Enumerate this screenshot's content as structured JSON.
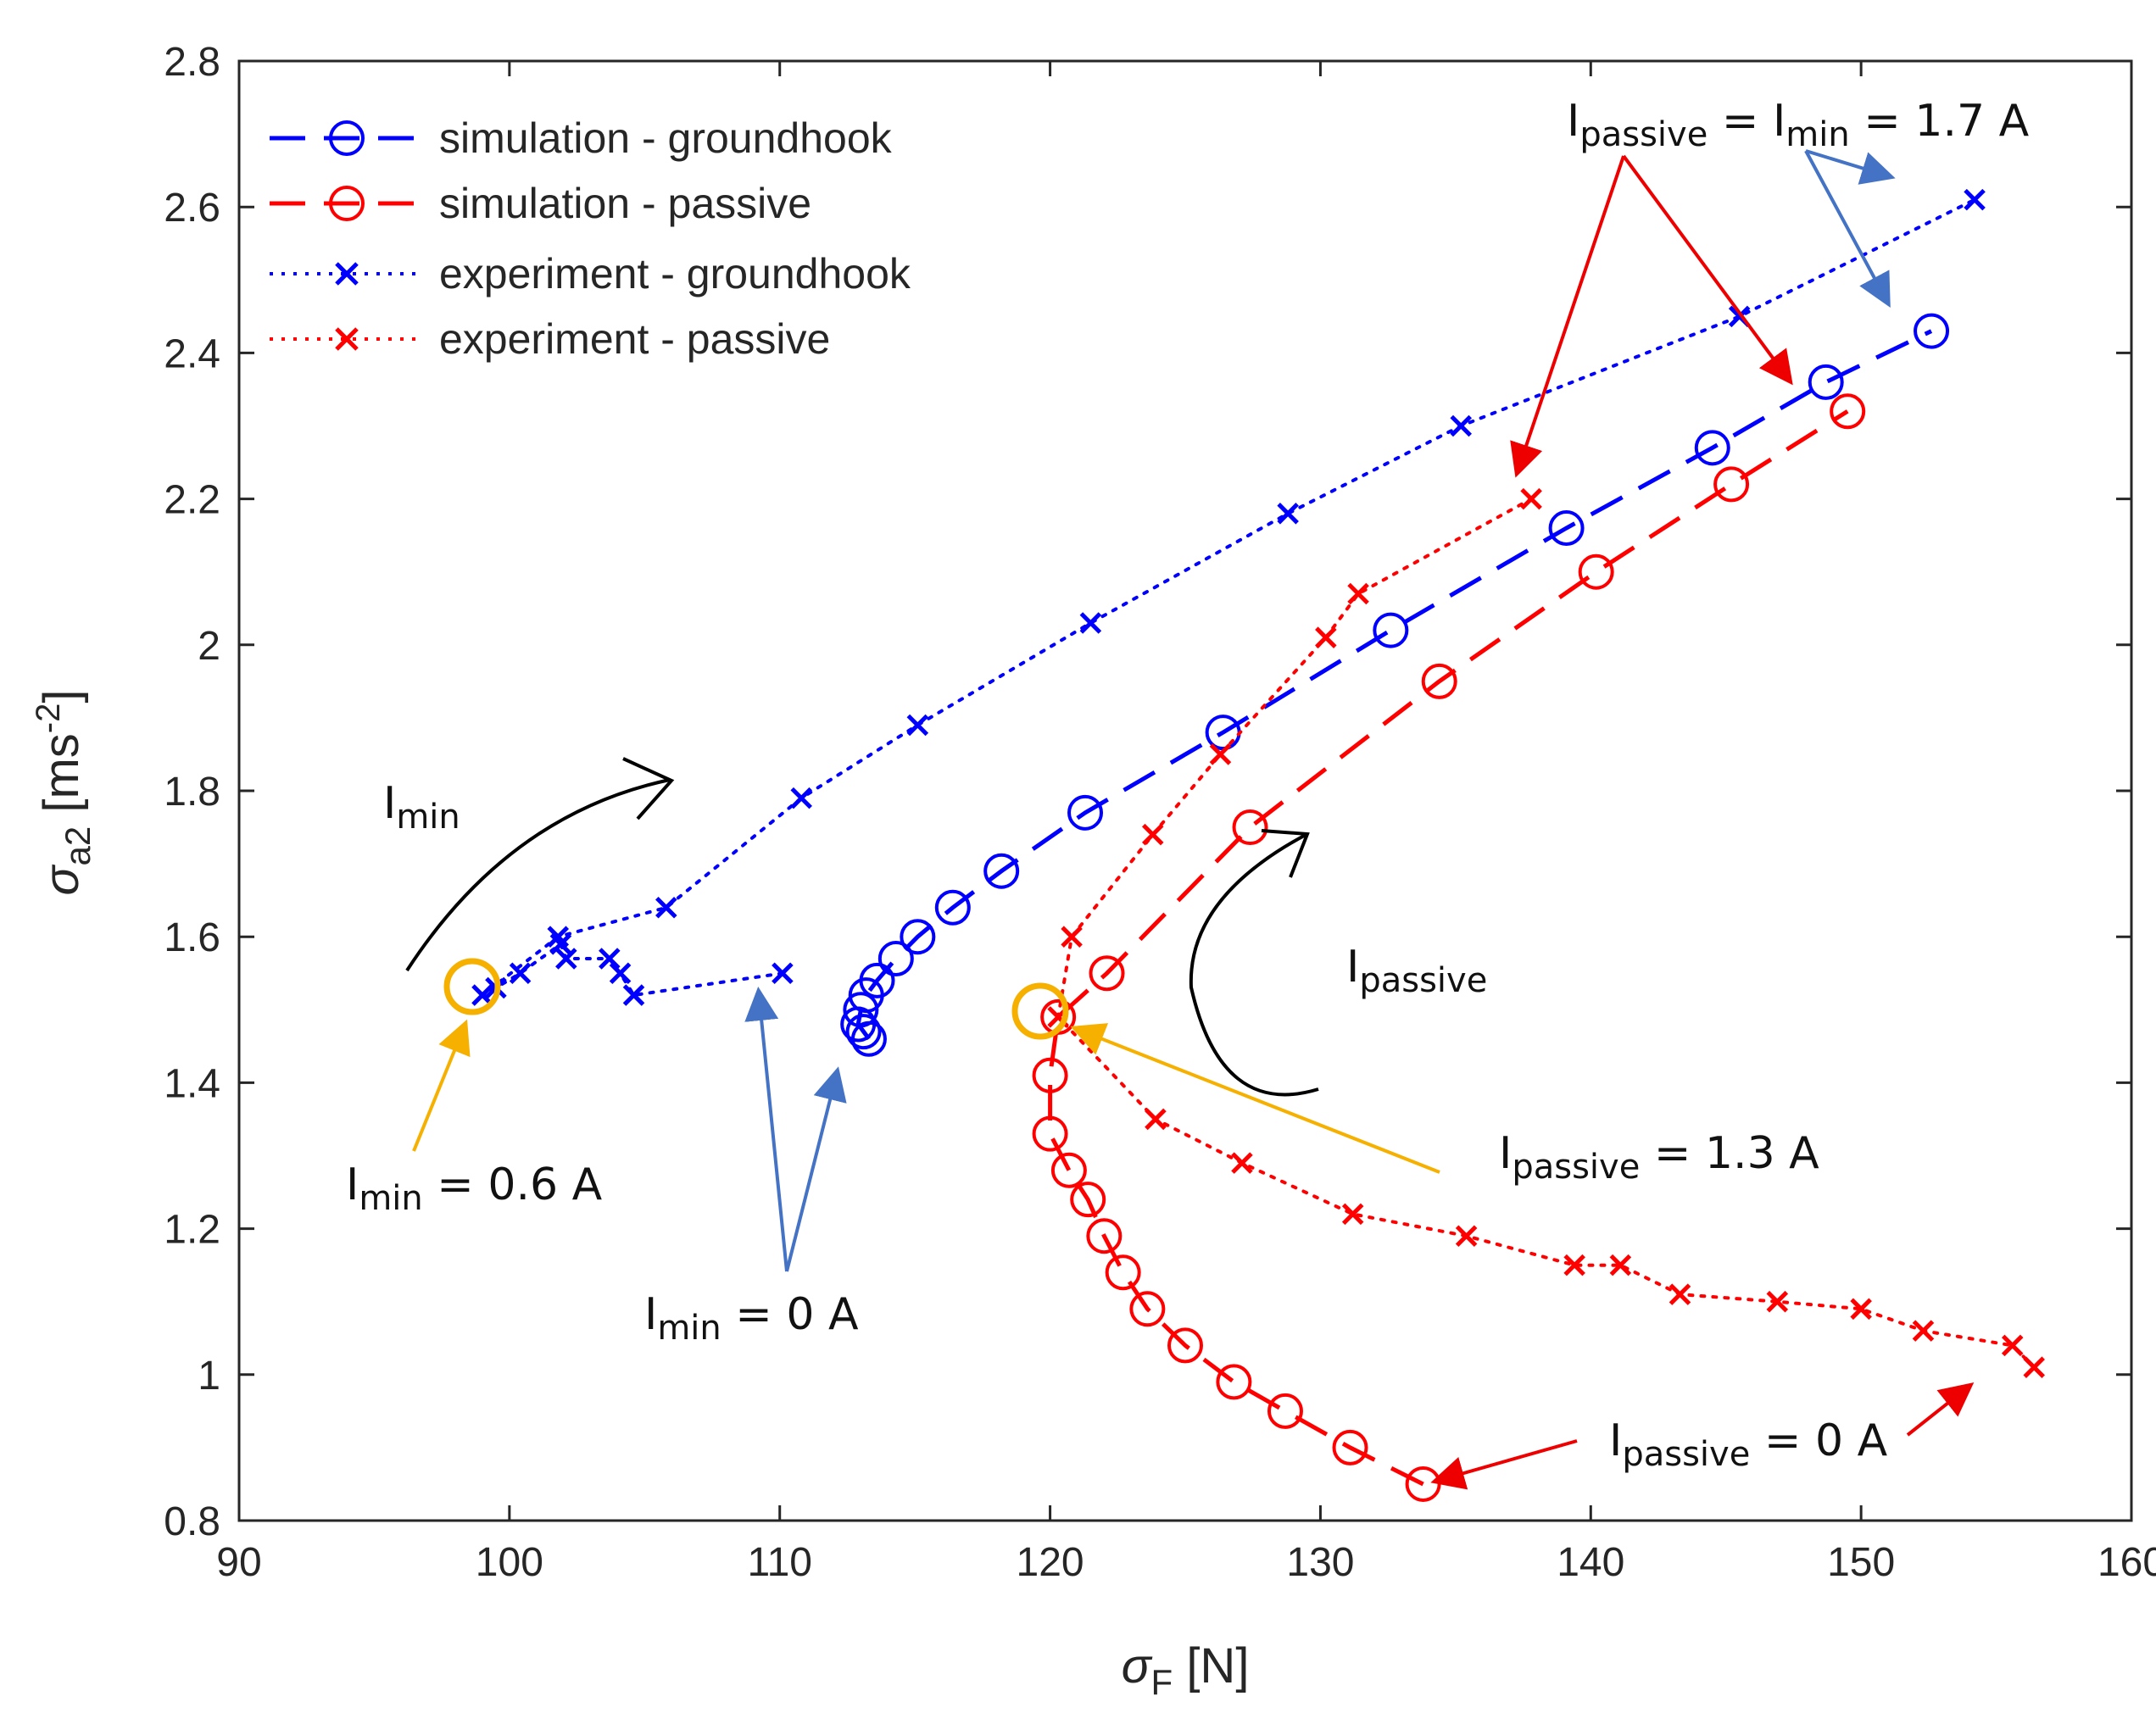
{
  "chart_data": {
    "type": "line",
    "title": "",
    "xlabel": {
      "symbol": "σ",
      "sub": "F",
      "unit": " [N]"
    },
    "ylabel": {
      "symbol": "σ",
      "sub": "a2",
      "unit": " [ms",
      "exp": "-2",
      "close": "]"
    },
    "xlim": [
      90,
      160
    ],
    "ylim": [
      0.8,
      2.8
    ],
    "xticks": [
      90,
      100,
      110,
      120,
      130,
      140,
      150,
      160
    ],
    "yticks": [
      0.8,
      1.0,
      1.2,
      1.4,
      1.6,
      1.8,
      2.0,
      2.2,
      2.4,
      2.6,
      2.8
    ],
    "xtick_labels": [
      "90",
      "100",
      "110",
      "120",
      "130",
      "140",
      "150",
      "160"
    ],
    "ytick_labels": [
      "0.8",
      "1",
      "1.2",
      "1.4",
      "1.6",
      "1.8",
      "2",
      "2.2",
      "2.4",
      "2.6",
      "2.8"
    ],
    "grid": false,
    "legend_position": "top-left",
    "series": [
      {
        "name": "simulation - groundhook",
        "color": "#0000ff",
        "line": "dashed",
        "marker": "circle",
        "points": [
          [
            113.3,
            1.46
          ],
          [
            113.1,
            1.47
          ],
          [
            112.9,
            1.48
          ],
          [
            113.0,
            1.5
          ],
          [
            113.2,
            1.52
          ],
          [
            113.6,
            1.54
          ],
          [
            114.3,
            1.57
          ],
          [
            115.1,
            1.6
          ],
          [
            116.4,
            1.64
          ],
          [
            118.2,
            1.69
          ],
          [
            121.3,
            1.77
          ],
          [
            126.4,
            1.88
          ],
          [
            132.6,
            2.02
          ],
          [
            139.1,
            2.16
          ],
          [
            144.5,
            2.27
          ],
          [
            148.7,
            2.36
          ],
          [
            152.6,
            2.43
          ]
        ]
      },
      {
        "name": "simulation - passive",
        "color": "#ff0000",
        "line": "dashed",
        "marker": "circle",
        "points": [
          [
            133.8,
            0.85
          ],
          [
            131.1,
            0.9
          ],
          [
            128.7,
            0.95
          ],
          [
            126.8,
            0.99
          ],
          [
            125.0,
            1.04
          ],
          [
            123.6,
            1.09
          ],
          [
            122.7,
            1.14
          ],
          [
            122.0,
            1.19
          ],
          [
            121.4,
            1.24
          ],
          [
            120.7,
            1.28
          ],
          [
            120.0,
            1.33
          ],
          [
            120.0,
            1.41
          ],
          [
            120.3,
            1.49
          ],
          [
            122.1,
            1.55
          ],
          [
            127.4,
            1.75
          ],
          [
            134.4,
            1.95
          ],
          [
            140.2,
            2.1
          ],
          [
            145.2,
            2.22
          ],
          [
            149.5,
            2.32
          ]
        ]
      },
      {
        "name": "experiment - groundhook",
        "color": "#0000ff",
        "line": "dotted",
        "marker": "x",
        "points": [
          [
            110.1,
            1.55
          ],
          [
            104.6,
            1.52
          ],
          [
            104.1,
            1.55
          ],
          [
            103.7,
            1.57
          ],
          [
            102.1,
            1.57
          ],
          [
            101.9,
            1.59
          ],
          [
            100.4,
            1.55
          ],
          [
            99.5,
            1.53
          ],
          [
            99.0,
            1.52
          ],
          [
            101.8,
            1.6
          ],
          [
            105.8,
            1.64
          ],
          [
            110.8,
            1.79
          ],
          [
            115.1,
            1.89
          ],
          [
            121.5,
            2.03
          ],
          [
            128.8,
            2.18
          ],
          [
            135.2,
            2.3
          ],
          [
            145.5,
            2.45
          ],
          [
            154.2,
            2.61
          ]
        ]
      },
      {
        "name": "experiment - passive",
        "color": "#ff0000",
        "line": "dotted",
        "marker": "x",
        "points": [
          [
            156.4,
            1.01
          ],
          [
            155.6,
            1.04
          ],
          [
            152.3,
            1.06
          ],
          [
            150.0,
            1.09
          ],
          [
            146.9,
            1.1
          ],
          [
            143.3,
            1.11
          ],
          [
            141.1,
            1.15
          ],
          [
            139.4,
            1.15
          ],
          [
            135.4,
            1.19
          ],
          [
            131.2,
            1.22
          ],
          [
            127.1,
            1.29
          ],
          [
            123.9,
            1.35
          ],
          [
            120.3,
            1.49
          ],
          [
            120.8,
            1.6
          ],
          [
            123.8,
            1.74
          ],
          [
            126.3,
            1.85
          ],
          [
            130.2,
            2.01
          ],
          [
            131.4,
            2.07
          ],
          [
            137.8,
            2.2
          ]
        ]
      }
    ],
    "annotations": {
      "i_min_label": "I",
      "i_min_sub": "min",
      "i_passive_label": "I",
      "i_passive_sub": "passive",
      "top_right": {
        "pre": "I",
        "sub1": "passive",
        "mid": " = I",
        "sub2": "min",
        "post": " = 1.7 A"
      },
      "left_circle": {
        "pre": "I",
        "sub": "min",
        "post": " = 0.6 A"
      },
      "bottom_mid": {
        "pre": "I",
        "sub": "min",
        "post": " = 0 A"
      },
      "passive_circle": {
        "pre": "I",
        "sub": "passive",
        "post": " = 1.3 A"
      },
      "bottom_right": {
        "pre": "I",
        "sub": "passive",
        "post": " = 0 A"
      }
    }
  },
  "colors": {
    "blue": "#0000ff",
    "red": "#ff0000",
    "orange": "#f5b000",
    "steel": "#4472c4",
    "arrow_red": "#ee0000",
    "axis": "#262626"
  }
}
